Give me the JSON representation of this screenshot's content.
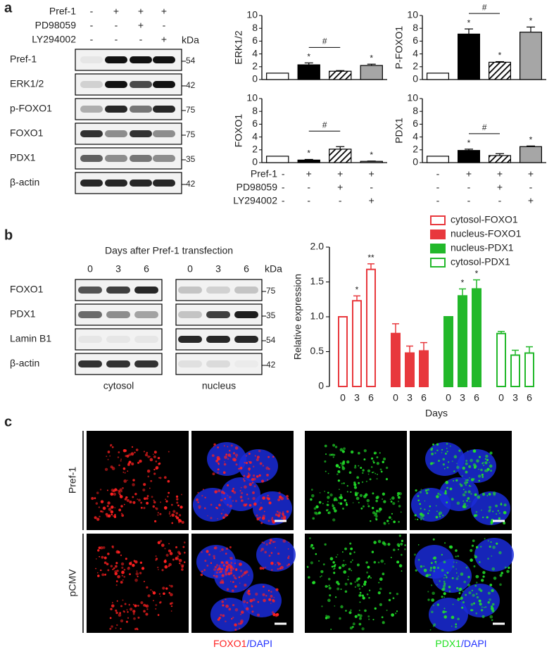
{
  "panel_labels": [
    "a",
    "b",
    "c"
  ],
  "panel_a": {
    "blot": {
      "treatments": [
        {
          "name": "Pref-1",
          "signs": [
            "-",
            "+",
            "+",
            "+"
          ]
        },
        {
          "name": "PD98059",
          "signs": [
            "-",
            "-",
            "+",
            "-"
          ]
        },
        {
          "name": "LY294002",
          "signs": [
            "-",
            "-",
            "-",
            "+"
          ]
        }
      ],
      "unit": "kDa",
      "rows": [
        {
          "label": "Pref-1",
          "kda": 54
        },
        {
          "label": "ERK1/2",
          "kda": 42
        },
        {
          "label": "p-FOXO1",
          "kda": 75
        },
        {
          "label": "FOXO1",
          "kda": 75
        },
        {
          "label": "PDX1",
          "kda": 35
        },
        {
          "label": "β-actin",
          "kda": 42
        }
      ]
    }
  },
  "chart_data": [
    {
      "type": "bar",
      "ylabel": "ERK1/2",
      "ylim": [
        0,
        10
      ],
      "yticks": [
        0,
        2,
        4,
        6,
        8,
        10
      ],
      "values": [
        1,
        2.3,
        1.3,
        2.2
      ],
      "errors": [
        0,
        0.3,
        0.1,
        0.2
      ],
      "colors": [
        "#ffffff",
        "#000000",
        "#000000",
        "#a6a6a6"
      ],
      "patterns": [
        "solid",
        "solid",
        "hatched",
        "solid"
      ],
      "significance": [
        null,
        "*",
        null,
        "*"
      ],
      "comparison": {
        "label": "#",
        "between": [
          1,
          2
        ]
      }
    },
    {
      "type": "bar",
      "ylabel": "P-FOXO1",
      "ylim": [
        0,
        10
      ],
      "yticks": [
        0,
        2,
        4,
        6,
        8,
        10
      ],
      "values": [
        1,
        7.1,
        2.7,
        7.4
      ],
      "errors": [
        0,
        0.8,
        0.1,
        0.8
      ],
      "colors": [
        "#ffffff",
        "#000000",
        "#000000",
        "#a6a6a6"
      ],
      "patterns": [
        "solid",
        "solid",
        "hatched",
        "solid"
      ],
      "significance": [
        null,
        "*",
        "*",
        "*"
      ],
      "comparison": {
        "label": "#",
        "between": [
          1,
          2
        ]
      }
    },
    {
      "type": "bar",
      "ylabel": "FOXO1",
      "ylim": [
        0,
        10
      ],
      "yticks": [
        0,
        2,
        4,
        6,
        8,
        10
      ],
      "values": [
        1,
        0.4,
        2.1,
        0.2
      ],
      "errors": [
        0,
        0.1,
        0.4,
        0.05
      ],
      "colors": [
        "#ffffff",
        "#000000",
        "#000000",
        "#a6a6a6"
      ],
      "patterns": [
        "solid",
        "solid",
        "hatched",
        "solid"
      ],
      "significance": [
        null,
        "*",
        null,
        "*"
      ],
      "comparison": {
        "label": "#",
        "between": [
          1,
          2
        ]
      }
    },
    {
      "type": "bar",
      "ylabel": "PDX1",
      "ylim": [
        0,
        10
      ],
      "yticks": [
        0,
        2,
        4,
        6,
        8,
        10
      ],
      "values": [
        1,
        1.9,
        1.1,
        2.5
      ],
      "errors": [
        0,
        0.2,
        0.3,
        0.1
      ],
      "colors": [
        "#ffffff",
        "#000000",
        "#000000",
        "#a6a6a6"
      ],
      "patterns": [
        "solid",
        "solid",
        "hatched",
        "solid"
      ],
      "significance": [
        null,
        "*",
        null,
        "*"
      ],
      "comparison": {
        "label": "#",
        "between": [
          1,
          2
        ]
      }
    },
    {
      "type": "grouped-bar",
      "ylabel": "Relative expression",
      "xlabel": "Days",
      "categories": [
        "0",
        "3",
        "6"
      ],
      "ylim": [
        0,
        2
      ],
      "yticks": [
        0,
        0.5,
        {
          "value": 1,
          "label": "1.0"
        },
        1.5,
        {
          "value": 2,
          "label": "2.0"
        }
      ],
      "series": [
        {
          "name": "cytosol-FOXO1",
          "color": "#e8383d",
          "fill": "open",
          "values": [
            1,
            1.23,
            1.68
          ],
          "errors": [
            0,
            0.07,
            0.08
          ],
          "significance": [
            null,
            "*",
            "**"
          ]
        },
        {
          "name": "nucleus-FOXO1",
          "color": "#e8383d",
          "fill": "solid",
          "values": [
            0.76,
            0.48,
            0.51
          ],
          "errors": [
            0.14,
            0.1,
            0.12
          ],
          "significance": [
            null,
            null,
            null
          ]
        },
        {
          "name": "nucleus-PDX1",
          "color": "#22b82a",
          "fill": "solid",
          "values": [
            1,
            1.3,
            1.4
          ],
          "errors": [
            0,
            0.1,
            0.13
          ],
          "significance": [
            null,
            "*",
            "*"
          ]
        },
        {
          "name": "cytosol-PDX1",
          "color": "#22b82a",
          "fill": "open",
          "values": [
            0.76,
            0.45,
            0.48
          ],
          "errors": [
            0.03,
            0.07,
            0.09
          ],
          "significance": [
            null,
            null,
            null
          ]
        }
      ]
    }
  ],
  "panel_b": {
    "blot": {
      "title": "Days after Pref-1 transfection",
      "lanes": [
        "0",
        "3",
        "6"
      ],
      "fractions": [
        "cytosol",
        "nucleus"
      ],
      "unit": "kDa",
      "rows": [
        {
          "label": "FOXO1",
          "kda": 75
        },
        {
          "label": "PDX1",
          "kda": 35
        },
        {
          "label": "Lamin B1",
          "kda": 54
        },
        {
          "label": "β-actin",
          "kda": 42
        }
      ]
    }
  },
  "panel_c": {
    "rows": [
      "Pref-1",
      "pCMV"
    ],
    "captions": [
      [
        {
          "text": "FOXO1",
          "color": "#ff2020"
        },
        {
          "text": "/DAPI",
          "color": "#2030ff"
        }
      ],
      [
        {
          "text": "PDX1",
          "color": "#20e020"
        },
        {
          "text": "/DAPI",
          "color": "#2030ff"
        }
      ]
    ]
  }
}
